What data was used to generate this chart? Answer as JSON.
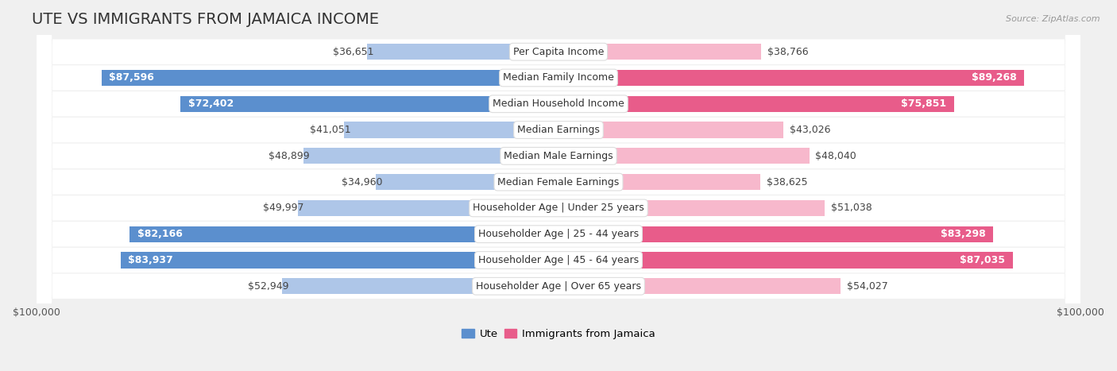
{
  "title": "UTE VS IMMIGRANTS FROM JAMAICA INCOME",
  "source": "Source: ZipAtlas.com",
  "categories": [
    "Per Capita Income",
    "Median Family Income",
    "Median Household Income",
    "Median Earnings",
    "Median Male Earnings",
    "Median Female Earnings",
    "Householder Age | Under 25 years",
    "Householder Age | 25 - 44 years",
    "Householder Age | 45 - 64 years",
    "Householder Age | Over 65 years"
  ],
  "ute_values": [
    36651,
    87596,
    72402,
    41051,
    48899,
    34960,
    49997,
    82166,
    83937,
    52949
  ],
  "jamaica_values": [
    38766,
    89268,
    75851,
    43026,
    48040,
    38625,
    51038,
    83298,
    87035,
    54027
  ],
  "ute_labels": [
    "$36,651",
    "$87,596",
    "$72,402",
    "$41,051",
    "$48,899",
    "$34,960",
    "$49,997",
    "$82,166",
    "$83,937",
    "$52,949"
  ],
  "jamaica_labels": [
    "$38,766",
    "$89,268",
    "$75,851",
    "$43,026",
    "$48,040",
    "$38,625",
    "$51,038",
    "$83,298",
    "$87,035",
    "$54,027"
  ],
  "max_value": 100000,
  "ute_color_light": "#aec6e8",
  "ute_color_dark": "#5b8fce",
  "jamaica_color_light": "#f7b8cc",
  "jamaica_color_dark": "#e85c8a",
  "row_bg": "#e8e8e8",
  "bar_height": 0.62,
  "title_fontsize": 14,
  "label_fontsize": 9,
  "category_fontsize": 9,
  "axis_label_fontsize": 9,
  "ute_threshold": 60000,
  "jamaica_threshold": 60000
}
